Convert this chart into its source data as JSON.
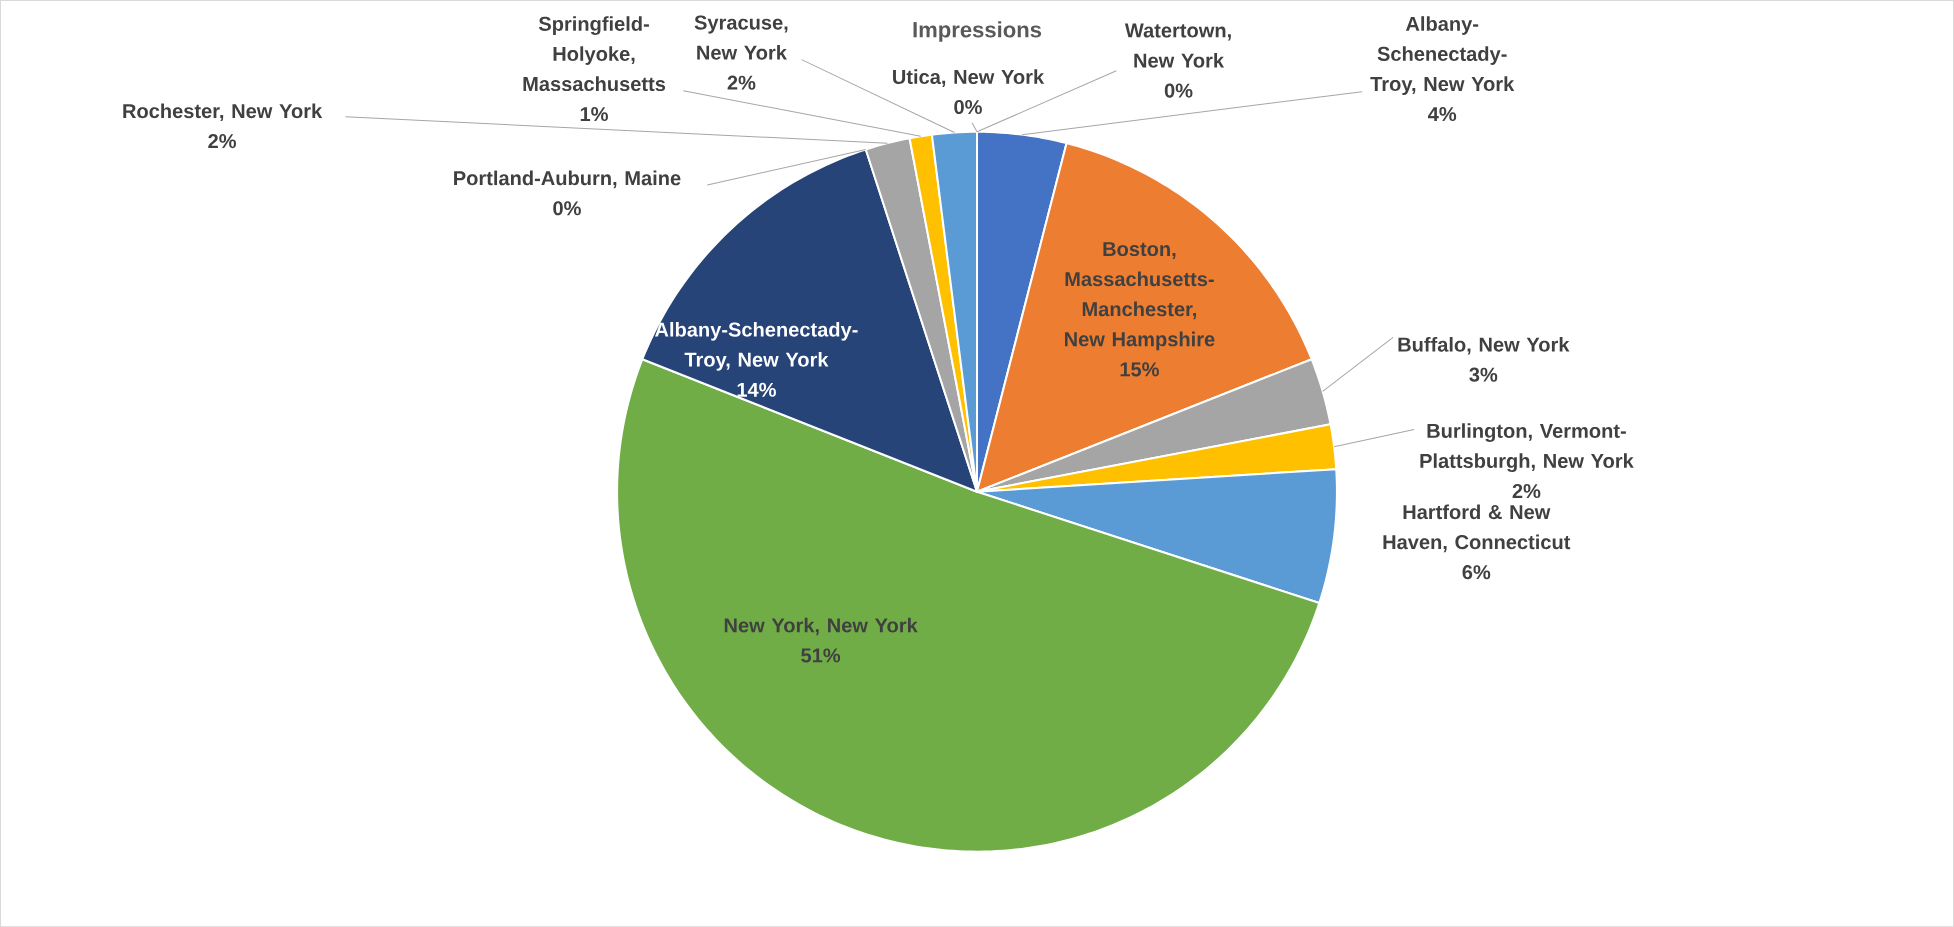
{
  "chart_data": {
    "type": "pie",
    "title": "Impressions",
    "categories": [
      "Albany-Schenectady-Troy, New York",
      "Boston, Massachusetts-Manchester, New Hampshire",
      "Buffalo, New York",
      "Burlington, Vermont-Plattsburgh, New York",
      "Hartford & New Haven, Connecticut",
      "New York, New York",
      "Albany-Schenectady-Troy, New York",
      "Portland-Auburn, Maine",
      "Rochester, New York",
      "Springfield-Holyoke, Massachusetts",
      "Syracuse, New York",
      "Utica, New York",
      "Watertown, New York"
    ],
    "values": [
      4,
      15,
      3,
      2,
      6,
      51,
      14,
      0,
      2,
      1,
      2,
      0,
      0
    ],
    "value_labels": [
      "4%",
      "15%",
      "3%",
      "2%",
      "6%",
      "51%",
      "14%",
      "0%",
      "2%",
      "1%",
      "2%",
      "0%",
      "0%"
    ],
    "colors": [
      "#4472c4",
      "#ed7d31",
      "#a5a5a5",
      "#ffc000",
      "#5b9bd5",
      "#70ad47",
      "#264478",
      "#9e480e",
      "#a5a5a5",
      "#ffc000",
      "#5b9bd5",
      "#70ad47",
      "#264478"
    ]
  }
}
